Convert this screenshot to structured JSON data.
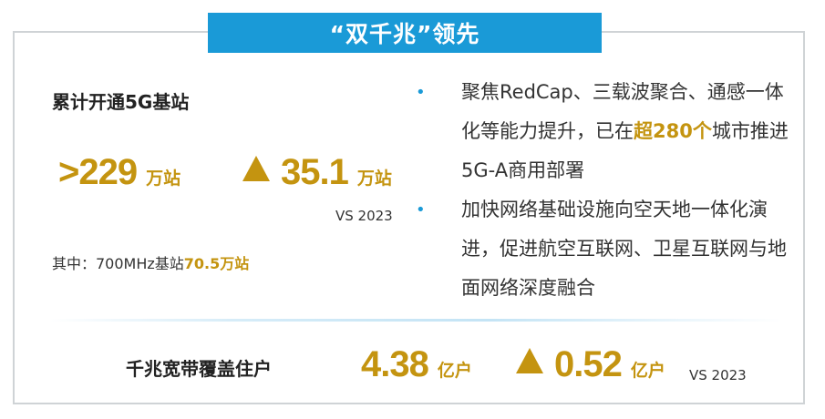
{
  "banner": {
    "title": "“双千兆”领先"
  },
  "base_station": {
    "title": "累计开通5G基站",
    "total_value": ">229",
    "total_unit": "万站",
    "growth_value": "35.1",
    "growth_unit": "万站",
    "vs": "VS 2023",
    "sub_prefix": "其中：700MHz基站",
    "sub_value": "70.5万站"
  },
  "bullets": [
    {
      "pre": "聚焦RedCap、三载波聚合、通感一体化等能力提升，已在",
      "highlight": "超280个",
      "post": "城市推进5G-A商用部署"
    },
    {
      "pre": "加快网络基础设施向空天地一体化演进，促进航空互联网、卫星互联网与地面网络深度融合",
      "highlight": "",
      "post": ""
    }
  ],
  "broadband": {
    "label": "千兆宽带覆盖住户",
    "value": "4.38",
    "unit": "亿户",
    "growth_value": "0.52",
    "growth_unit": "亿户",
    "vs": "VS 2023"
  },
  "colors": {
    "accent_blue": "#1a9ad7",
    "highlight_gold": "#c49410"
  }
}
